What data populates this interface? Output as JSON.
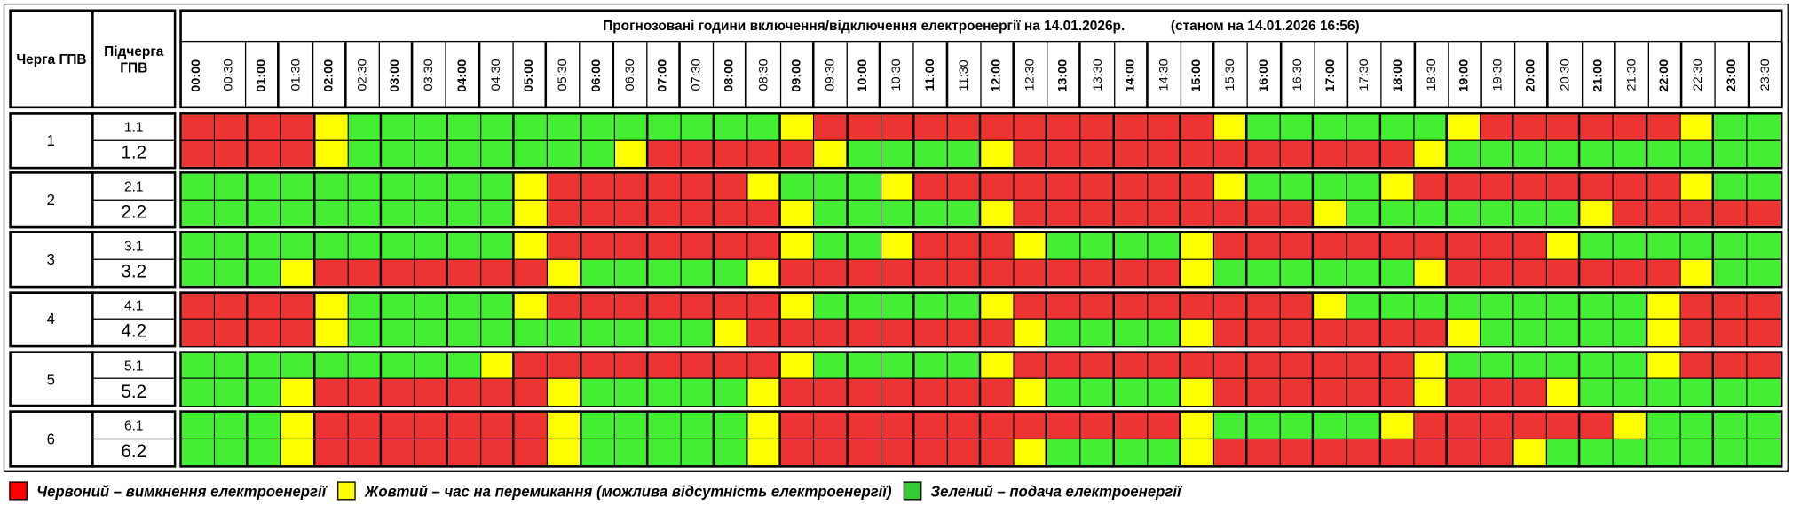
{
  "header": {
    "queue": "Черга ГПВ",
    "subqueue": "Підчерга ГПВ",
    "title": "Прогнозовані години включення/відключення електроенергії на 14.01.2026р.",
    "status": "(станом на 14.01.2026 16:56)",
    "times": [
      "00:00",
      "00:30",
      "01:00",
      "01:30",
      "02:00",
      "02:30",
      "03:00",
      "03:30",
      "04:00",
      "04:30",
      "05:00",
      "05:30",
      "06:00",
      "06:30",
      "07:00",
      "07:30",
      "08:00",
      "08:30",
      "09:00",
      "09:30",
      "10:00",
      "10:30",
      "11:00",
      "11:30",
      "12:00",
      "12:30",
      "13:00",
      "13:30",
      "14:00",
      "14:30",
      "15:00",
      "15:30",
      "16:00",
      "16:30",
      "17:00",
      "17:30",
      "18:00",
      "18:30",
      "19:00",
      "19:30",
      "20:00",
      "20:30",
      "21:00",
      "21:30",
      "22:00",
      "22:30",
      "23:00",
      "23:30"
    ]
  },
  "groups": [
    {
      "label": "1",
      "rows": [
        {
          "label": "1.1",
          "cells": [
            "#e33",
            "#e33",
            "#e33",
            "#e33",
            "#ff0",
            "#4e3",
            "#4e3",
            "#4e3",
            "#4e3",
            "#4e3",
            "#4e3",
            "#4e3",
            "#4e3",
            "#4e3",
            "#4e3",
            "#4e3",
            "#4e3",
            "#4e3",
            "#ff0",
            "#e33",
            "#e33",
            "#e33",
            "#e33",
            "#e33",
            "#e33",
            "#e33",
            "#e33",
            "#e33",
            "#e33",
            "#e33",
            "#e33",
            "#ff0",
            "#4e3",
            "#4e3",
            "#4e3",
            "#4e3",
            "#4e3",
            "#4e3",
            "#ff0",
            "#e33",
            "#e33",
            "#e33",
            "#e33",
            "#e33",
            "#e33",
            "#ff0",
            "#4e3",
            "#4e3"
          ]
        },
        {
          "label": "1.2",
          "cells": [
            "#e33",
            "#e33",
            "#e33",
            "#e33",
            "#ff0",
            "#4e3",
            "#4e3",
            "#4e3",
            "#4e3",
            "#4e3",
            "#4e3",
            "#4e3",
            "#4e3",
            "#ff0",
            "#e33",
            "#e33",
            "#e33",
            "#e33",
            "#e33",
            "#ff0",
            "#4e3",
            "#4e3",
            "#4e3",
            "#4e3",
            "#ff0",
            "#e33",
            "#e33",
            "#e33",
            "#e33",
            "#e33",
            "#e33",
            "#e33",
            "#e33",
            "#e33",
            "#e33",
            "#e33",
            "#e33",
            "#ff0",
            "#4e3",
            "#4e3",
            "#4e3",
            "#4e3",
            "#4e3",
            "#4e3",
            "#4e3",
            "#4e3",
            "#4e3",
            "#4e3"
          ]
        }
      ]
    },
    {
      "label": "2",
      "rows": [
        {
          "label": "2.1",
          "cells": [
            "#4e3",
            "#4e3",
            "#4e3",
            "#4e3",
            "#4e3",
            "#4e3",
            "#4e3",
            "#4e3",
            "#4e3",
            "#4e3",
            "#ff0",
            "#e33",
            "#e33",
            "#e33",
            "#e33",
            "#e33",
            "#e33",
            "#ff0",
            "#4e3",
            "#4e3",
            "#4e3",
            "#ff0",
            "#e33",
            "#e33",
            "#e33",
            "#e33",
            "#e33",
            "#e33",
            "#e33",
            "#e33",
            "#e33",
            "#ff0",
            "#4e3",
            "#4e3",
            "#4e3",
            "#4e3",
            "#ff0",
            "#e33",
            "#e33",
            "#e33",
            "#e33",
            "#e33",
            "#e33",
            "#e33",
            "#e33",
            "#ff0",
            "#4e3",
            "#4e3"
          ]
        },
        {
          "label": "2.2",
          "cells": [
            "#4e3",
            "#4e3",
            "#4e3",
            "#4e3",
            "#4e3",
            "#4e3",
            "#4e3",
            "#4e3",
            "#4e3",
            "#4e3",
            "#ff0",
            "#e33",
            "#e33",
            "#e33",
            "#e33",
            "#e33",
            "#e33",
            "#e33",
            "#ff0",
            "#4e3",
            "#4e3",
            "#4e3",
            "#4e3",
            "#4e3",
            "#ff0",
            "#e33",
            "#e33",
            "#e33",
            "#e33",
            "#e33",
            "#e33",
            "#e33",
            "#e33",
            "#e33",
            "#ff0",
            "#4e3",
            "#4e3",
            "#4e3",
            "#4e3",
            "#4e3",
            "#4e3",
            "#4e3",
            "#ff0",
            "#e33",
            "#e33",
            "#e33",
            "#e33",
            "#e33"
          ]
        }
      ]
    },
    {
      "label": "3",
      "rows": [
        {
          "label": "3.1",
          "cells": [
            "#4e3",
            "#4e3",
            "#4e3",
            "#4e3",
            "#4e3",
            "#4e3",
            "#4e3",
            "#4e3",
            "#4e3",
            "#4e3",
            "#ff0",
            "#e33",
            "#e33",
            "#e33",
            "#e33",
            "#e33",
            "#e33",
            "#e33",
            "#ff0",
            "#4e3",
            "#4e3",
            "#ff0",
            "#e33",
            "#e33",
            "#e33",
            "#ff0",
            "#4e3",
            "#4e3",
            "#4e3",
            "#4e3",
            "#ff0",
            "#e33",
            "#e33",
            "#e33",
            "#e33",
            "#e33",
            "#e33",
            "#e33",
            "#e33",
            "#e33",
            "#e33",
            "#ff0",
            "#4e3",
            "#4e3",
            "#4e3",
            "#4e3",
            "#4e3",
            "#4e3"
          ]
        },
        {
          "label": "3.2",
          "cells": [
            "#4e3",
            "#4e3",
            "#4e3",
            "#ff0",
            "#e33",
            "#e33",
            "#e33",
            "#e33",
            "#e33",
            "#e33",
            "#e33",
            "#ff0",
            "#4e3",
            "#4e3",
            "#4e3",
            "#4e3",
            "#4e3",
            "#ff0",
            "#e33",
            "#e33",
            "#e33",
            "#e33",
            "#e33",
            "#e33",
            "#e33",
            "#e33",
            "#e33",
            "#e33",
            "#e33",
            "#e33",
            "#ff0",
            "#4e3",
            "#4e3",
            "#4e3",
            "#4e3",
            "#4e3",
            "#4e3",
            "#ff0",
            "#e33",
            "#e33",
            "#e33",
            "#e33",
            "#e33",
            "#e33",
            "#e33",
            "#ff0",
            "#4e3",
            "#4e3"
          ]
        }
      ]
    },
    {
      "label": "4",
      "rows": [
        {
          "label": "4.1",
          "cells": [
            "#e33",
            "#e33",
            "#e33",
            "#e33",
            "#ff0",
            "#4e3",
            "#4e3",
            "#4e3",
            "#4e3",
            "#4e3",
            "#ff0",
            "#e33",
            "#e33",
            "#e33",
            "#e33",
            "#e33",
            "#e33",
            "#e33",
            "#ff0",
            "#4e3",
            "#4e3",
            "#4e3",
            "#4e3",
            "#4e3",
            "#ff0",
            "#e33",
            "#e33",
            "#e33",
            "#e33",
            "#e33",
            "#e33",
            "#e33",
            "#e33",
            "#e33",
            "#ff0",
            "#4e3",
            "#4e3",
            "#4e3",
            "#4e3",
            "#4e3",
            "#4e3",
            "#4e3",
            "#4e3",
            "#4e3",
            "#ff0",
            "#e33",
            "#e33",
            "#e33"
          ]
        },
        {
          "label": "4.2",
          "cells": [
            "#e33",
            "#e33",
            "#e33",
            "#e33",
            "#ff0",
            "#4e3",
            "#4e3",
            "#4e3",
            "#4e3",
            "#4e3",
            "#4e3",
            "#4e3",
            "#4e3",
            "#4e3",
            "#4e3",
            "#4e3",
            "#ff0",
            "#e33",
            "#e33",
            "#e33",
            "#e33",
            "#e33",
            "#e33",
            "#e33",
            "#e33",
            "#ff0",
            "#4e3",
            "#4e3",
            "#4e3",
            "#4e3",
            "#ff0",
            "#e33",
            "#e33",
            "#e33",
            "#e33",
            "#e33",
            "#e33",
            "#e33",
            "#ff0",
            "#4e3",
            "#4e3",
            "#4e3",
            "#4e3",
            "#4e3",
            "#ff0",
            "#e33",
            "#e33",
            "#e33"
          ]
        }
      ]
    },
    {
      "label": "5",
      "rows": [
        {
          "label": "5.1",
          "cells": [
            "#4e3",
            "#4e3",
            "#4e3",
            "#4e3",
            "#4e3",
            "#4e3",
            "#4e3",
            "#4e3",
            "#4e3",
            "#ff0",
            "#e33",
            "#e33",
            "#e33",
            "#e33",
            "#e33",
            "#e33",
            "#e33",
            "#e33",
            "#ff0",
            "#4e3",
            "#4e3",
            "#4e3",
            "#4e3",
            "#4e3",
            "#ff0",
            "#e33",
            "#e33",
            "#e33",
            "#e33",
            "#e33",
            "#e33",
            "#e33",
            "#e33",
            "#e33",
            "#e33",
            "#e33",
            "#e33",
            "#ff0",
            "#4e3",
            "#4e3",
            "#4e3",
            "#4e3",
            "#4e3",
            "#4e3",
            "#ff0",
            "#e33",
            "#e33",
            "#e33"
          ]
        },
        {
          "label": "5.2",
          "cells": [
            "#4e3",
            "#4e3",
            "#4e3",
            "#ff0",
            "#e33",
            "#e33",
            "#e33",
            "#e33",
            "#e33",
            "#e33",
            "#e33",
            "#ff0",
            "#4e3",
            "#4e3",
            "#4e3",
            "#4e3",
            "#4e3",
            "#ff0",
            "#e33",
            "#e33",
            "#e33",
            "#e33",
            "#e33",
            "#e33",
            "#e33",
            "#ff0",
            "#4e3",
            "#4e3",
            "#4e3",
            "#4e3",
            "#ff0",
            "#e33",
            "#e33",
            "#e33",
            "#e33",
            "#e33",
            "#e33",
            "#ff0",
            "#e33",
            "#e33",
            "#e33",
            "#ff0",
            "#4e3",
            "#4e3",
            "#4e3",
            "#4e3",
            "#4e3",
            "#4e3"
          ]
        }
      ]
    },
    {
      "label": "6",
      "rows": [
        {
          "label": "6.1",
          "cells": [
            "#4e3",
            "#4e3",
            "#4e3",
            "#ff0",
            "#e33",
            "#e33",
            "#e33",
            "#e33",
            "#e33",
            "#e33",
            "#e33",
            "#ff0",
            "#4e3",
            "#4e3",
            "#4e3",
            "#4e3",
            "#4e3",
            "#ff0",
            "#e33",
            "#e33",
            "#e33",
            "#e33",
            "#e33",
            "#e33",
            "#e33",
            "#e33",
            "#e33",
            "#e33",
            "#e33",
            "#e33",
            "#ff0",
            "#4e3",
            "#4e3",
            "#4e3",
            "#4e3",
            "#4e3",
            "#ff0",
            "#e33",
            "#e33",
            "#e33",
            "#e33",
            "#e33",
            "#e33",
            "#ff0",
            "#4e3",
            "#4e3",
            "#4e3",
            "#4e3"
          ]
        },
        {
          "label": "6.2",
          "cells": [
            "#4e3",
            "#4e3",
            "#4e3",
            "#ff0",
            "#e33",
            "#e33",
            "#e33",
            "#e33",
            "#e33",
            "#e33",
            "#e33",
            "#ff0",
            "#4e3",
            "#4e3",
            "#4e3",
            "#4e3",
            "#4e3",
            "#ff0",
            "#e33",
            "#e33",
            "#e33",
            "#e33",
            "#e33",
            "#e33",
            "#e33",
            "#ff0",
            "#4e3",
            "#4e3",
            "#4e3",
            "#4e3",
            "#ff0",
            "#e33",
            "#e33",
            "#e33",
            "#e33",
            "#e33",
            "#e33",
            "#e33",
            "#e33",
            "#e33",
            "#ff0",
            "#4e3",
            "#4e3",
            "#4e3",
            "#4e3",
            "#4e3",
            "#4e3",
            "#4e3"
          ]
        }
      ]
    }
  ],
  "legend": [
    {
      "color": "#f00",
      "label": "Червоний – вимкнення електроенергії"
    },
    {
      "color": "#ff0",
      "label": "Жовтий – час на перемикання (можлива відсутність електроенергії)"
    },
    {
      "color": "#3c3",
      "label": "Зелений – подача електроенергії"
    }
  ]
}
